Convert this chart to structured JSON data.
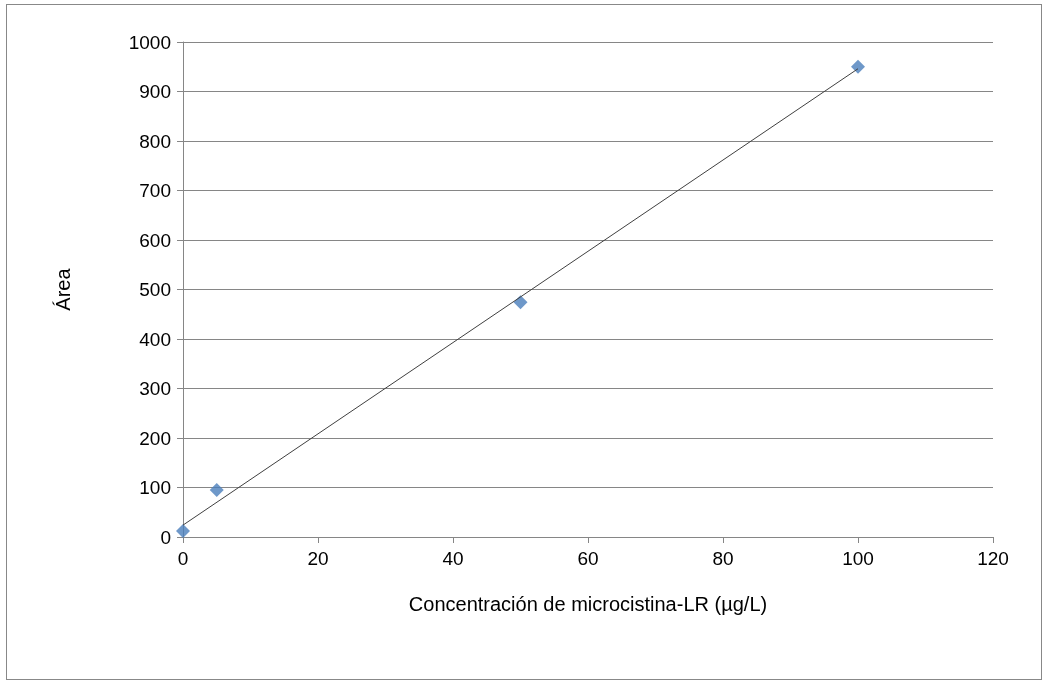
{
  "chart_data": {
    "type": "scatter",
    "xlabel": "Concentración de microcistina-LR (µg/L)",
    "ylabel": "Área",
    "xlim": [
      0,
      120
    ],
    "xticks": [
      0,
      20,
      40,
      60,
      80,
      100,
      120
    ],
    "ylim": [
      0,
      1000
    ],
    "yticks": [
      0,
      100,
      200,
      300,
      400,
      500,
      600,
      700,
      800,
      900,
      1000
    ],
    "grid": "y",
    "series": [
      {
        "color": "#4a7ebb",
        "marker": "diamond",
        "x": [
          0,
          5,
          50,
          100
        ],
        "values": [
          12,
          95,
          474,
          950
        ]
      },
      {
        "type": "line",
        "color": "#404040",
        "marker": "none",
        "line_style": "solid",
        "x": [
          0,
          100
        ],
        "values": [
          24,
          946
        ]
      }
    ]
  }
}
